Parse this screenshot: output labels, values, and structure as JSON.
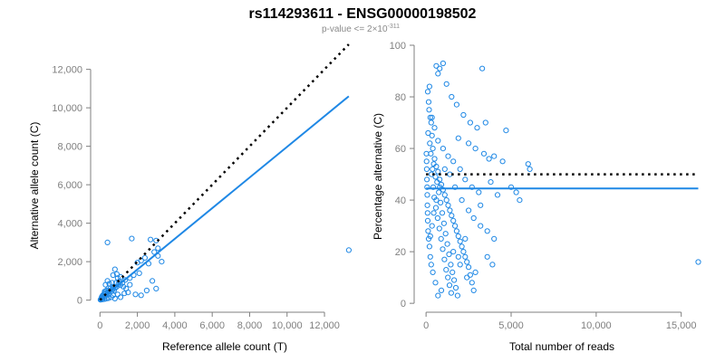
{
  "title": "rs114293611 - ENSG00000198502",
  "subtitle": {
    "prefix": "p-value <= 2×10",
    "exponent": "-311"
  },
  "colors": {
    "points": "#1f88e5",
    "fit_line": "#1f88e5",
    "reference_line": "#000000",
    "axis": "#7f7f7f"
  },
  "chart_data": [
    {
      "type": "scatter",
      "xlabel": "Reference allele count (T)",
      "ylabel": "Alternative allele count (C)",
      "xlim": [
        -500,
        13500
      ],
      "ylim": [
        -300,
        12500
      ],
      "xticks": [
        0,
        2000,
        4000,
        6000,
        8000,
        10000,
        12000
      ],
      "xtick_labels": [
        "0",
        "2,000",
        "4,000",
        "6,000",
        "8,000",
        "10,000",
        "12,000"
      ],
      "yticks": [
        0,
        2000,
        4000,
        6000,
        8000,
        10000,
        12000
      ],
      "ytick_labels": [
        "0",
        "2,000",
        "4,000",
        "6,000",
        "8,000",
        "10,000",
        "12,000"
      ],
      "grid": false,
      "points": [
        [
          400,
          3000
        ],
        [
          1700,
          3200
        ],
        [
          2700,
          3150
        ],
        [
          3000,
          3100
        ],
        [
          3100,
          2700
        ],
        [
          2900,
          2500
        ],
        [
          2400,
          2200
        ],
        [
          2200,
          2050
        ],
        [
          2000,
          1950
        ],
        [
          1800,
          1300
        ],
        [
          1600,
          1150
        ],
        [
          1350,
          1050
        ],
        [
          1200,
          900
        ],
        [
          1100,
          780
        ],
        [
          950,
          1150
        ],
        [
          800,
          1600
        ],
        [
          900,
          1350
        ],
        [
          700,
          1300
        ],
        [
          650,
          900
        ],
        [
          500,
          850
        ],
        [
          450,
          620
        ],
        [
          400,
          1000
        ],
        [
          350,
          500
        ],
        [
          300,
          800
        ],
        [
          250,
          450
        ],
        [
          200,
          300
        ],
        [
          150,
          250
        ],
        [
          100,
          180
        ],
        [
          80,
          120
        ],
        [
          60,
          60
        ],
        [
          50,
          30
        ],
        [
          30,
          20
        ],
        [
          120,
          100
        ],
        [
          180,
          220
        ],
        [
          220,
          160
        ],
        [
          260,
          380
        ],
        [
          320,
          320
        ],
        [
          380,
          260
        ],
        [
          420,
          420
        ],
        [
          480,
          350
        ],
        [
          520,
          500
        ],
        [
          560,
          620
        ],
        [
          600,
          450
        ],
        [
          680,
          560
        ],
        [
          720,
          700
        ],
        [
          760,
          520
        ],
        [
          820,
          640
        ],
        [
          860,
          900
        ],
        [
          900,
          700
        ],
        [
          980,
          820
        ],
        [
          1020,
          960
        ],
        [
          1100,
          1200
        ],
        [
          1250,
          700
        ],
        [
          1400,
          600
        ],
        [
          1500,
          400
        ],
        [
          1900,
          300
        ],
        [
          2200,
          250
        ],
        [
          2500,
          500
        ],
        [
          2800,
          1000
        ],
        [
          3000,
          600
        ],
        [
          3300,
          2000
        ],
        [
          13300,
          2600
        ],
        [
          1300,
          350
        ],
        [
          950,
          300
        ],
        [
          700,
          250
        ],
        [
          600,
          150
        ],
        [
          450,
          100
        ],
        [
          350,
          80
        ],
        [
          250,
          60
        ],
        [
          150,
          40
        ],
        [
          800,
          80
        ],
        [
          1100,
          150
        ],
        [
          1600,
          800
        ],
        [
          2100,
          1400
        ],
        [
          2600,
          1900
        ],
        [
          3100,
          2300
        ]
      ],
      "fit_line": {
        "x": [
          0,
          13300
        ],
        "y": [
          0,
          10600
        ]
      },
      "reference_line": {
        "x": [
          0,
          13300
        ],
        "y": [
          0,
          13300
        ]
      }
    },
    {
      "type": "scatter",
      "xlabel": "Total number of reads",
      "ylabel": "Percentage alternative (C)",
      "xlim": [
        -700,
        16400
      ],
      "ylim": [
        -1,
        100
      ],
      "xticks": [
        0,
        5000,
        10000,
        15000
      ],
      "xtick_labels": [
        "0",
        "5,000",
        "10,000",
        "15,000"
      ],
      "yticks": [
        0,
        20,
        40,
        60,
        80,
        100
      ],
      "ytick_labels": [
        "0",
        "20",
        "40",
        "60",
        "80",
        "100"
      ],
      "grid": false,
      "points": [
        [
          100,
          82
        ],
        [
          200,
          84
        ],
        [
          150,
          78
        ],
        [
          250,
          72
        ],
        [
          180,
          75
        ],
        [
          300,
          70
        ],
        [
          120,
          66
        ],
        [
          350,
          65
        ],
        [
          220,
          62
        ],
        [
          400,
          60
        ],
        [
          280,
          58
        ],
        [
          500,
          56
        ],
        [
          450,
          54
        ],
        [
          600,
          53
        ],
        [
          380,
          52
        ],
        [
          700,
          51
        ],
        [
          320,
          50
        ],
        [
          550,
          49
        ],
        [
          800,
          48
        ],
        [
          650,
          47
        ],
        [
          900,
          46
        ],
        [
          420,
          45
        ],
        [
          1000,
          44
        ],
        [
          750,
          43
        ],
        [
          1100,
          42
        ],
        [
          480,
          41
        ],
        [
          1200,
          40
        ],
        [
          850,
          39
        ],
        [
          1300,
          38
        ],
        [
          580,
          37
        ],
        [
          1400,
          36
        ],
        [
          950,
          35
        ],
        [
          1500,
          34
        ],
        [
          680,
          33
        ],
        [
          1600,
          32
        ],
        [
          1050,
          31
        ],
        [
          1700,
          30
        ],
        [
          780,
          29
        ],
        [
          1800,
          28
        ],
        [
          1150,
          27
        ],
        [
          1900,
          26
        ],
        [
          880,
          25
        ],
        [
          2000,
          24
        ],
        [
          1250,
          23
        ],
        [
          2100,
          22
        ],
        [
          980,
          21
        ],
        [
          2200,
          20
        ],
        [
          1350,
          19
        ],
        [
          2300,
          18
        ],
        [
          1080,
          17
        ],
        [
          2400,
          16
        ],
        [
          1450,
          15
        ],
        [
          2500,
          14
        ],
        [
          1180,
          13
        ],
        [
          1550,
          12
        ],
        [
          2600,
          11
        ],
        [
          1280,
          10
        ],
        [
          1650,
          9
        ],
        [
          2700,
          8
        ],
        [
          1380,
          7
        ],
        [
          1750,
          6
        ],
        [
          2800,
          5
        ],
        [
          1480,
          4
        ],
        [
          1850,
          3
        ],
        [
          700,
          3
        ],
        [
          900,
          5
        ],
        [
          550,
          8
        ],
        [
          400,
          12
        ],
        [
          300,
          15
        ],
        [
          250,
          18
        ],
        [
          200,
          22
        ],
        [
          150,
          25
        ],
        [
          120,
          28
        ],
        [
          100,
          32
        ],
        [
          90,
          35
        ],
        [
          80,
          38
        ],
        [
          70,
          42
        ],
        [
          60,
          45
        ],
        [
          50,
          48
        ],
        [
          40,
          52
        ],
        [
          30,
          55
        ],
        [
          20,
          58
        ],
        [
          600,
          92
        ],
        [
          800,
          91
        ],
        [
          1000,
          93
        ],
        [
          700,
          89
        ],
        [
          1200,
          85
        ],
        [
          1500,
          80
        ],
        [
          1800,
          77
        ],
        [
          2200,
          73
        ],
        [
          2600,
          70
        ],
        [
          3000,
          68
        ],
        [
          3300,
          91
        ],
        [
          3500,
          70
        ],
        [
          4000,
          57
        ],
        [
          4500,
          55
        ],
        [
          5000,
          45
        ],
        [
          5300,
          43
        ],
        [
          6000,
          54
        ],
        [
          6100,
          52
        ],
        [
          4700,
          67
        ],
        [
          3800,
          47
        ],
        [
          4200,
          42
        ],
        [
          3200,
          38
        ],
        [
          3600,
          18
        ],
        [
          4000,
          25
        ],
        [
          2000,
          15
        ],
        [
          2400,
          10
        ],
        [
          2900,
          12
        ],
        [
          3900,
          15
        ],
        [
          5500,
          40
        ],
        [
          16000,
          16
        ],
        [
          1000,
          60
        ],
        [
          1300,
          57
        ],
        [
          1600,
          55
        ],
        [
          2000,
          52
        ],
        [
          2300,
          48
        ],
        [
          2700,
          45
        ],
        [
          3100,
          43
        ],
        [
          700,
          63
        ],
        [
          500,
          68
        ],
        [
          350,
          72
        ],
        [
          1900,
          64
        ],
        [
          2500,
          62
        ],
        [
          2900,
          60
        ],
        [
          3400,
          58
        ],
        [
          3700,
          56
        ],
        [
          1100,
          52
        ],
        [
          1400,
          50
        ],
        [
          800,
          45
        ],
        [
          600,
          40
        ],
        [
          450,
          35
        ],
        [
          350,
          30
        ],
        [
          250,
          26
        ],
        [
          1700,
          45
        ],
        [
          2100,
          40
        ],
        [
          2500,
          36
        ],
        [
          2800,
          33
        ],
        [
          3200,
          30
        ],
        [
          3600,
          28
        ],
        [
          1600,
          20
        ],
        [
          1900,
          18
        ],
        [
          2300,
          25
        ]
      ],
      "fit_line": {
        "x": [
          0,
          16000
        ],
        "y": [
          44.5,
          44.5
        ]
      },
      "reference_line": {
        "x": [
          0,
          16000
        ],
        "y": [
          50,
          50
        ]
      }
    }
  ]
}
